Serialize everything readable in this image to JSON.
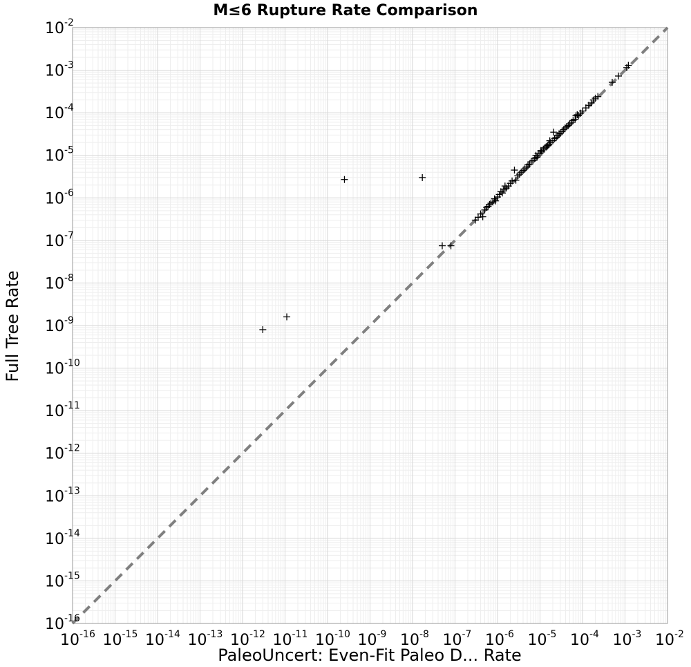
{
  "chart_data": {
    "type": "scatter",
    "title": "M≤6 Rupture Rate Comparison",
    "xlabel": "PaleoUncert: Even-Fit Paleo D... Rate",
    "ylabel": "Full Tree Rate",
    "xscale": "log",
    "yscale": "log",
    "xlim_exp": [
      -16,
      -2
    ],
    "ylim_exp": [
      -16,
      -2
    ],
    "tick_base": "10",
    "tick_exponents": [
      "-16",
      "-15",
      "-14",
      "-13",
      "-12",
      "-11",
      "-10",
      "-9",
      "-8",
      "-7",
      "-6",
      "-5",
      "-4",
      "-3",
      "-2"
    ],
    "grid": true,
    "reference_line": {
      "name": "y = x",
      "style": "dashed",
      "color": "#808080"
    },
    "marker": "+",
    "marker_color": "#000000",
    "points": [
      [
        3e-12,
        8e-10
      ],
      [
        1.1e-11,
        1.6e-09
      ],
      [
        2.5e-10,
        2.7e-06
      ],
      [
        1.7e-08,
        3e-06
      ],
      [
        5e-08,
        7.5e-08
      ],
      [
        8e-08,
        7.5e-08
      ],
      [
        3e-07,
        3e-07
      ],
      [
        3.5e-07,
        3.5e-07
      ],
      [
        4e-07,
        4.2e-07
      ],
      [
        4.5e-07,
        3.6e-07
      ],
      [
        5e-07,
        5.2e-07
      ],
      [
        5.5e-07,
        6e-07
      ],
      [
        6e-07,
        6.3e-07
      ],
      [
        6.5e-07,
        7e-07
      ],
      [
        7e-07,
        7.5e-07
      ],
      [
        7.8e-07,
        8e-07
      ],
      [
        8.5e-07,
        9.5e-07
      ],
      [
        9e-07,
        8.5e-07
      ],
      [
        1e-06,
        1.05e-06
      ],
      [
        1.1e-06,
        1.2e-06
      ],
      [
        1.2e-06,
        1.4e-06
      ],
      [
        1.3e-06,
        1.3e-06
      ],
      [
        1.4e-06,
        1.6e-06
      ],
      [
        1.5e-06,
        1.9e-06
      ],
      [
        1.6e-06,
        1.7e-06
      ],
      [
        1.8e-06,
        1.9e-06
      ],
      [
        2e-06,
        2.2e-06
      ],
      [
        2.2e-06,
        2.5e-06
      ],
      [
        2.5e-06,
        4.5e-06
      ],
      [
        2.7e-06,
        2.6e-06
      ],
      [
        3e-06,
        3.3e-06
      ],
      [
        3.3e-06,
        3.6e-06
      ],
      [
        3.6e-06,
        4e-06
      ],
      [
        4e-06,
        4.4e-06
      ],
      [
        4.4e-06,
        4.8e-06
      ],
      [
        4.8e-06,
        5.3e-06
      ],
      [
        5.2e-06,
        6e-06
      ],
      [
        5.7e-06,
        6.2e-06
      ],
      [
        6.2e-06,
        7e-06
      ],
      [
        6.8e-06,
        7.5e-06
      ],
      [
        7.5e-06,
        8.5e-06
      ],
      [
        8e-06,
        1e-05
      ],
      [
        8.5e-06,
        9e-06
      ],
      [
        9e-06,
        1.1e-05
      ],
      [
        1e-05,
        1.1e-05
      ],
      [
        1.05e-05,
        1.3e-05
      ],
      [
        1.1e-05,
        1.2e-05
      ],
      [
        1.2e-05,
        1.4e-05
      ],
      [
        1.3e-05,
        1.5e-05
      ],
      [
        1.4e-05,
        1.6e-05
      ],
      [
        1.5e-05,
        1.7e-05
      ],
      [
        1.6e-05,
        1.8e-05
      ],
      [
        1.7e-05,
        2.2e-05
      ],
      [
        1.8e-05,
        2e-05
      ],
      [
        2e-05,
        2.2e-05
      ],
      [
        2.1e-05,
        3.5e-05
      ],
      [
        2.2e-05,
        2.5e-05
      ],
      [
        2.4e-05,
        2.6e-05
      ],
      [
        2.6e-05,
        2.9e-05
      ],
      [
        2.8e-05,
        3.2e-05
      ],
      [
        3e-05,
        3.3e-05
      ],
      [
        3.3e-05,
        3.6e-05
      ],
      [
        3.6e-05,
        4e-05
      ],
      [
        3.9e-05,
        4.4e-05
      ],
      [
        4.2e-05,
        4.7e-05
      ],
      [
        4.6e-05,
        5e-05
      ],
      [
        5e-05,
        5.5e-05
      ],
      [
        5.5e-05,
        6e-05
      ],
      [
        6e-05,
        6.6e-05
      ],
      [
        6.7e-05,
        7e-05
      ],
      [
        7e-05,
        8.5e-05
      ],
      [
        7.5e-05,
        9e-05
      ],
      [
        8e-05,
        8.6e-05
      ],
      [
        9e-05,
        9.8e-05
      ],
      [
        0.0001,
        0.00011
      ],
      [
        0.00012,
        0.00013
      ],
      [
        0.00014,
        0.00015
      ],
      [
        0.00016,
        0.00017
      ],
      [
        0.00018,
        0.0002
      ],
      [
        0.0002,
        0.00022
      ],
      [
        0.00023,
        0.00024
      ],
      [
        0.0005,
        0.00052
      ],
      [
        0.0007,
        0.00073
      ],
      [
        0.0011,
        0.00115
      ],
      [
        0.0012,
        0.0013
      ]
    ]
  }
}
